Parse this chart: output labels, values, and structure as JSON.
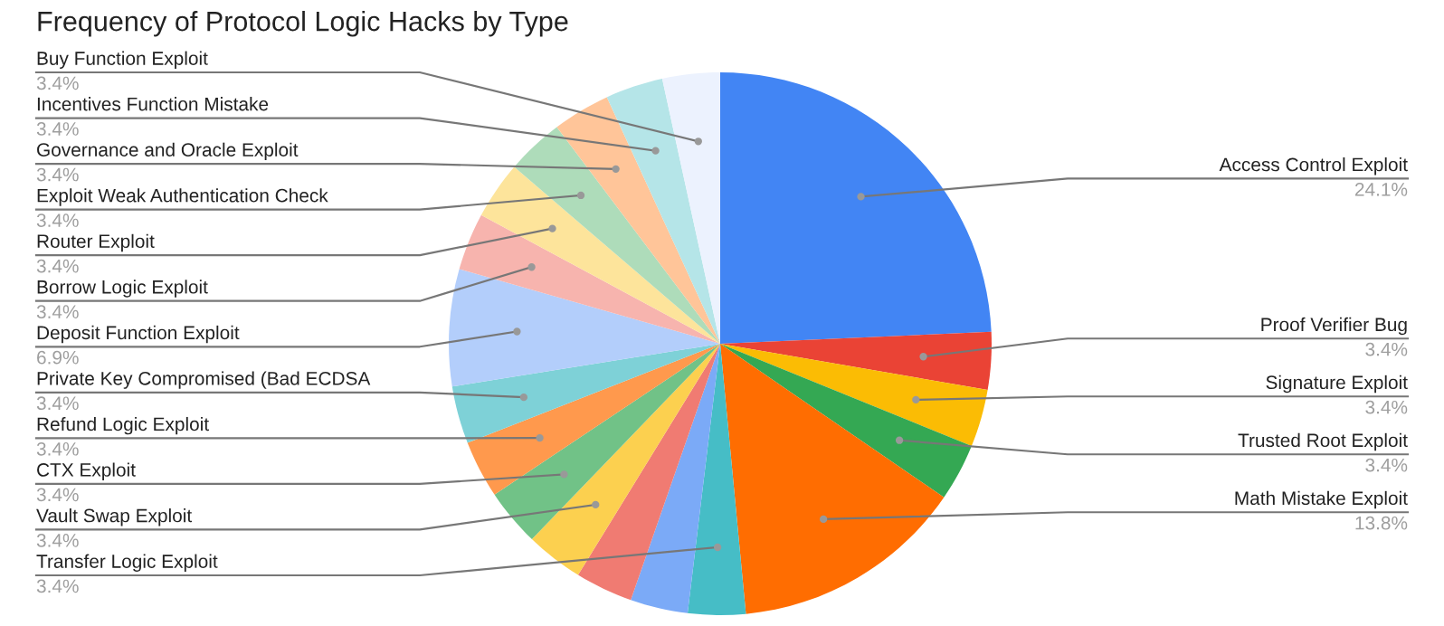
{
  "chart_data": {
    "type": "pie",
    "title": "Frequency of Protocol Logic Hacks by Type",
    "categories": [
      "Access Control Exploit",
      "Proof Verifier Bug",
      "Signature Exploit",
      "Trusted Root Exploit",
      "Math Mistake Exploit",
      "Transfer Logic Exploit",
      null,
      null,
      "Vault Swap Exploit",
      "CTX Exploit",
      "Refund Logic Exploit",
      "Private Key Compromised (Bad ECDSA",
      "Deposit Function Exploit",
      "Borrow Logic Exploit",
      "Router Exploit",
      "Exploit Weak Authentication Check",
      "Governance and Oracle Exploit",
      "Incentives Function Mistake",
      "Buy Function Exploit"
    ],
    "values": [
      24.1,
      3.4,
      3.4,
      3.4,
      13.8,
      3.4,
      3.4,
      3.4,
      3.4,
      3.4,
      3.4,
      3.4,
      6.9,
      3.4,
      3.4,
      3.4,
      3.4,
      3.4,
      3.4
    ],
    "value_labels": [
      "24.1%",
      "3.4%",
      "3.4%",
      "3.4%",
      "13.8%",
      "3.4%",
      null,
      null,
      "3.4%",
      "3.4%",
      "3.4%",
      "3.4%",
      "6.9%",
      "3.4%",
      "3.4%",
      "3.4%",
      "3.4%",
      "3.4%",
      "3.4%"
    ],
    "colors": [
      "#4285f4",
      "#ea4335",
      "#fbbc04",
      "#34a853",
      "#ff6d01",
      "#46bdc6",
      "#7baaf7",
      "#f07b72",
      "#fcd04f",
      "#71c287",
      "#ff994d",
      "#7ed1d7",
      "#b3cefb",
      "#f7b4ae",
      "#fde49b",
      "#aedcba",
      "#ffc599",
      "#b5e5e8",
      "#ecf2fe"
    ]
  }
}
